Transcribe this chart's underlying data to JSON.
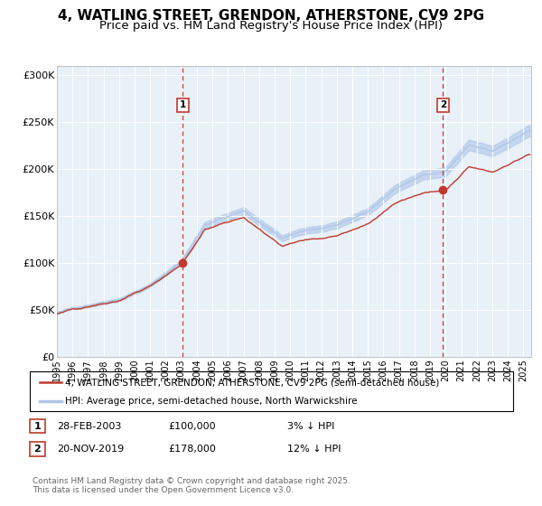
{
  "title": "4, WATLING STREET, GRENDON, ATHERSTONE, CV9 2PG",
  "subtitle": "Price paid vs. HM Land Registry's House Price Index (HPI)",
  "title_fontsize": 11,
  "subtitle_fontsize": 9.5,
  "x_start": 1995.0,
  "x_end": 2025.5,
  "y_min": 0,
  "y_max": 310000,
  "y_ticks": [
    0,
    50000,
    100000,
    150000,
    200000,
    250000,
    300000
  ],
  "y_tick_labels": [
    "£0",
    "£50K",
    "£100K",
    "£150K",
    "£200K",
    "£250K",
    "£300K"
  ],
  "x_ticks": [
    1995,
    1996,
    1997,
    1998,
    1999,
    2000,
    2001,
    2002,
    2003,
    2004,
    2005,
    2006,
    2007,
    2008,
    2009,
    2010,
    2011,
    2012,
    2013,
    2014,
    2015,
    2016,
    2017,
    2018,
    2019,
    2020,
    2021,
    2022,
    2023,
    2024,
    2025
  ],
  "hpi_color": "#aec6e8",
  "price_color": "#c0392b",
  "marker_color": "#c0392b",
  "vline_color": "#c0392b",
  "bg_color": "#e8f0f8",
  "sale1_x": 2003.083,
  "sale1_y": 100000,
  "sale2_x": 2019.833,
  "sale2_y": 178000,
  "annotation1_label": "1",
  "annotation2_label": "2",
  "legend_line1": "4, WATLING STREET, GRENDON, ATHERSTONE, CV9 2PG (semi-detached house)",
  "legend_line2": "HPI: Average price, semi-detached house, North Warwickshire",
  "note1_label": "1",
  "note1_date": "28-FEB-2003",
  "note1_price": "£100,000",
  "note1_pct": "3% ↓ HPI",
  "note2_label": "2",
  "note2_date": "20-NOV-2019",
  "note2_price": "£178,000",
  "note2_pct": "12% ↓ HPI",
  "copyright_text": "Contains HM Land Registry data © Crown copyright and database right 2025.\nThis data is licensed under the Open Government Licence v3.0.",
  "hpi_anchors_x": [
    1995.0,
    1997.0,
    1999.0,
    2001.0,
    2003.0,
    2004.5,
    2007.0,
    2009.5,
    2011.0,
    2013.0,
    2015.0,
    2017.0,
    2018.5,
    2020.0,
    2021.5,
    2023.0,
    2025.3
  ],
  "hpi_anchors_y": [
    47000,
    55000,
    63000,
    78000,
    103000,
    142000,
    158000,
    128000,
    136000,
    140000,
    155000,
    182000,
    194000,
    198000,
    225000,
    218000,
    240000
  ]
}
